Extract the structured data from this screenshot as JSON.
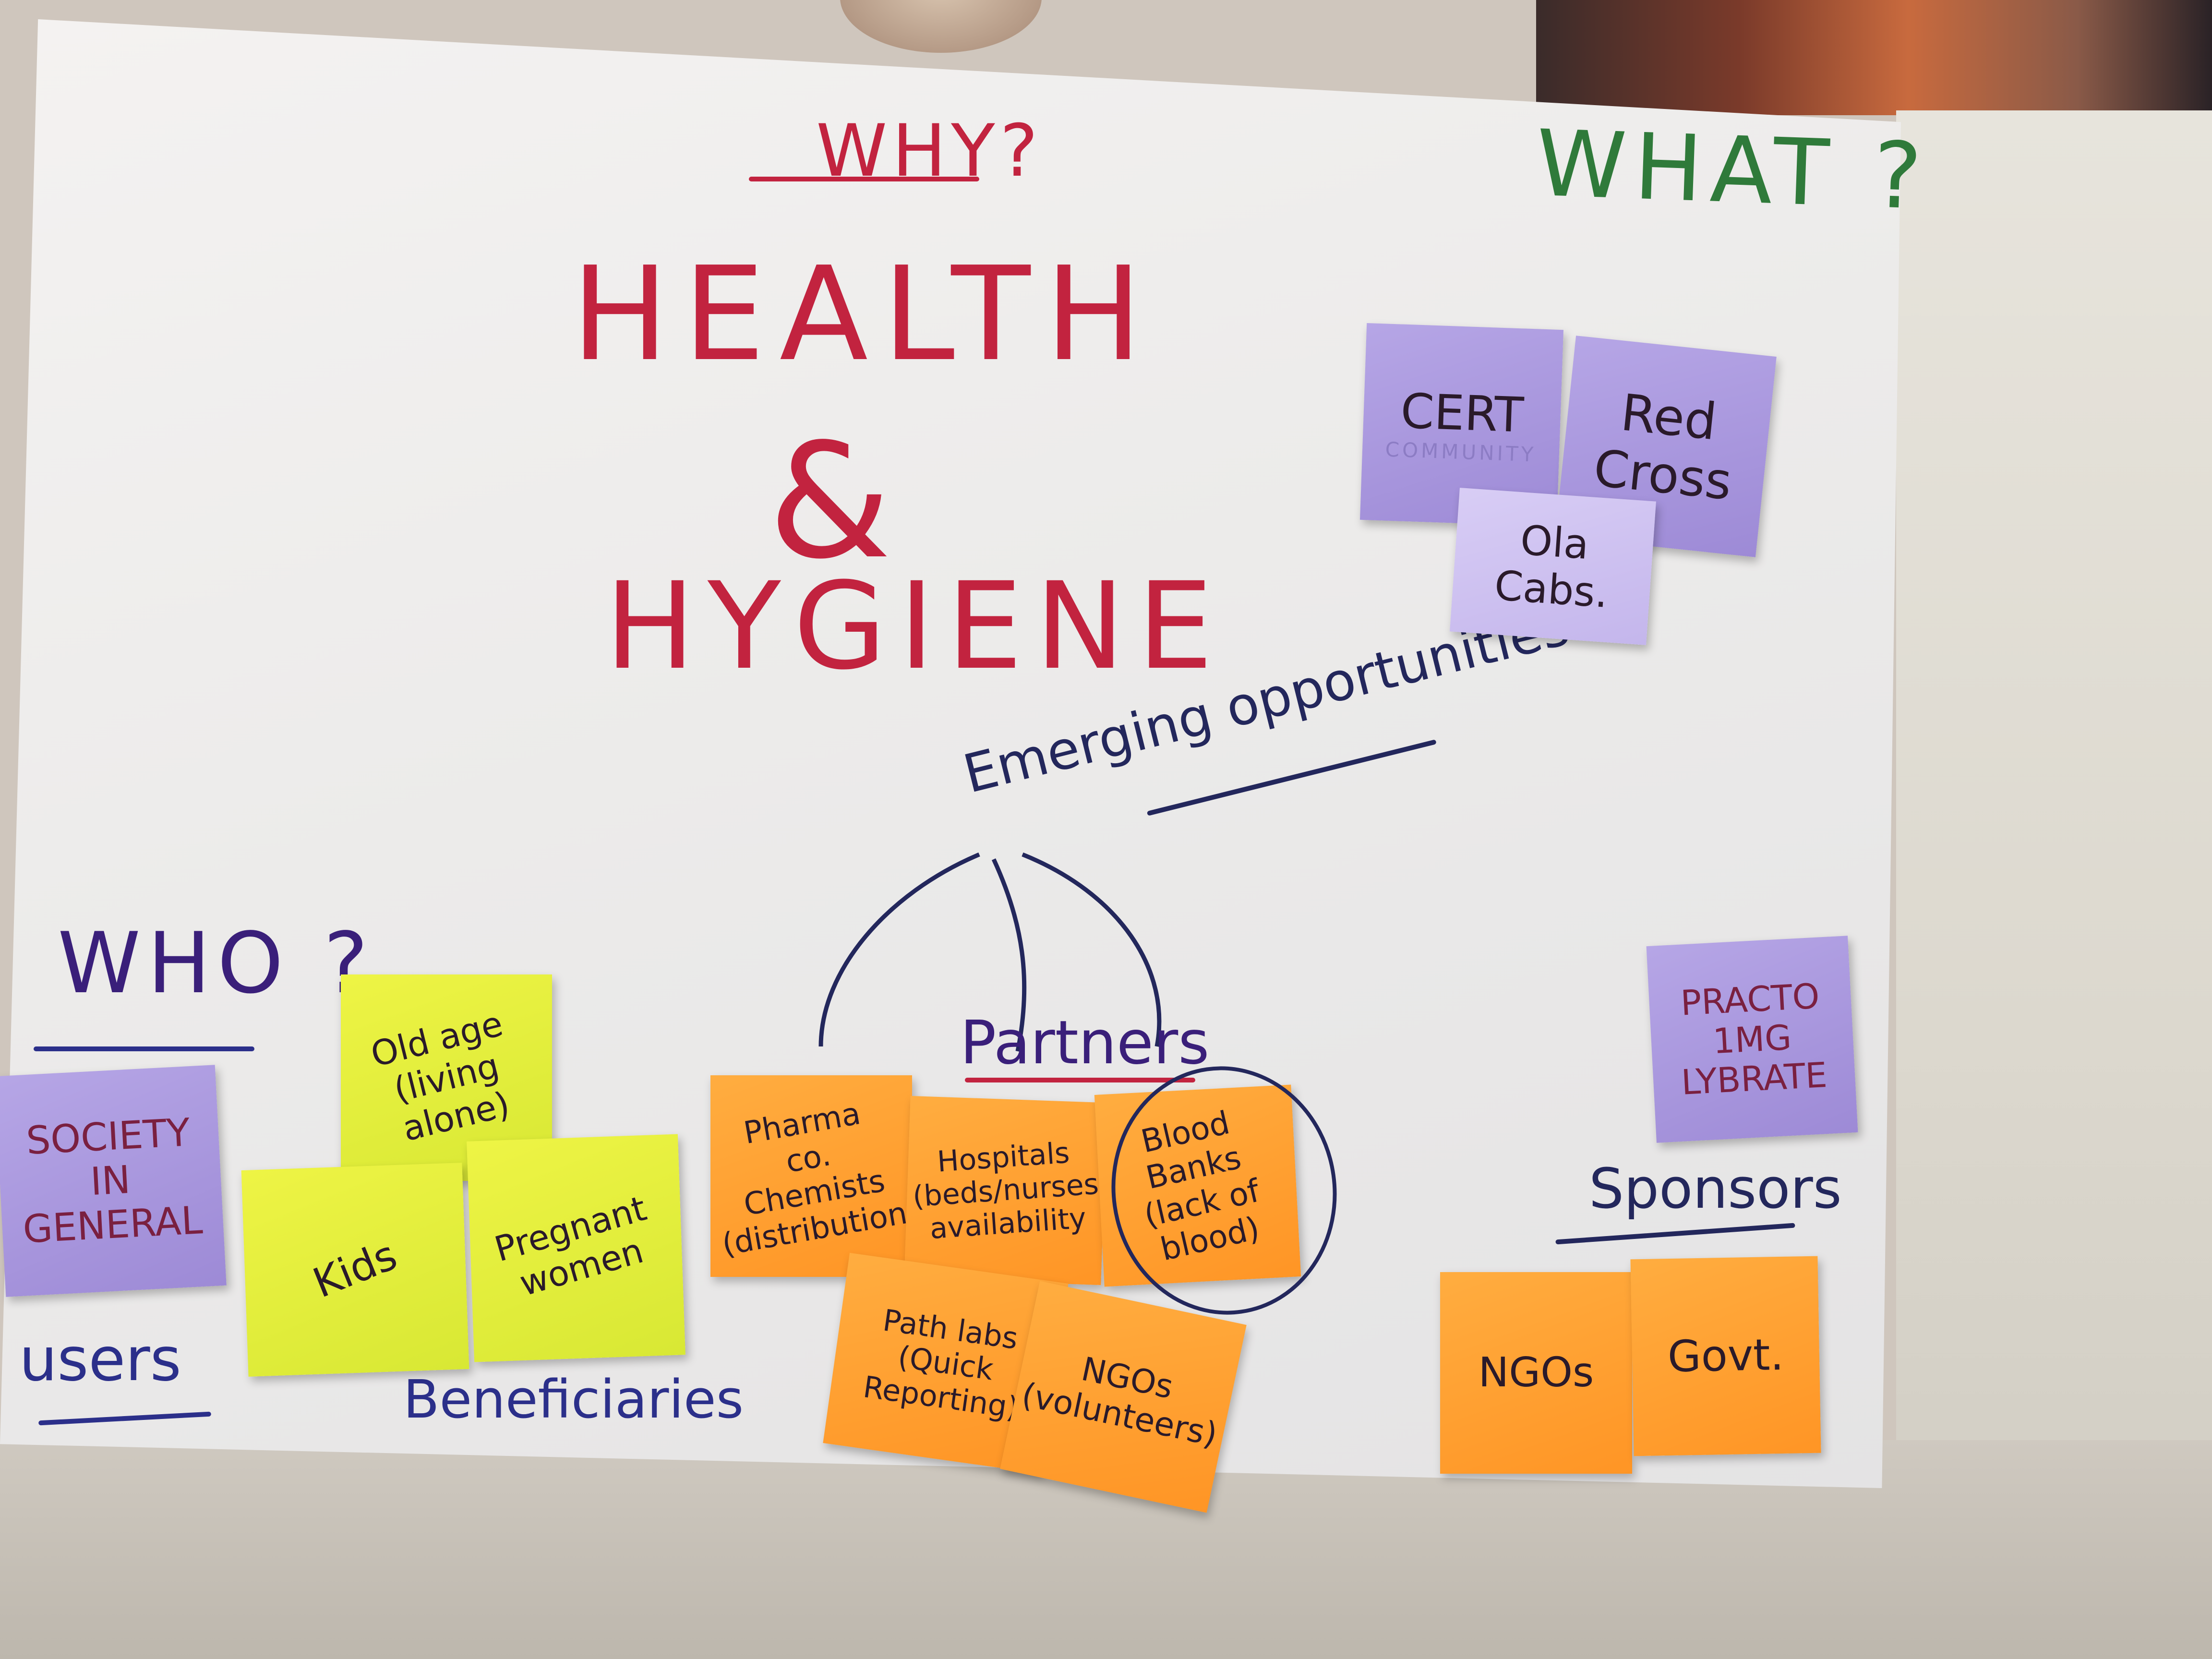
{
  "headings": {
    "why": "WHY?",
    "what": "WHAT ?",
    "who": "WHO ?",
    "title_line1": "HEALTH",
    "ampersand": "&",
    "title_line2": "HYGIENE",
    "emerging": "Emerging opportunities",
    "partners": "Partners",
    "sponsors": "Sponsors",
    "users": "users",
    "beneficiaries": "Beneficiaries"
  },
  "what_notes": [
    {
      "text": "CERT",
      "sub": "COMMUNITY"
    },
    {
      "text": "Red\nCross"
    },
    {
      "text": "Ola\nCabs."
    }
  ],
  "who_notes": [
    {
      "text": "SOCIETY\nIN\nGENERAL"
    },
    {
      "text": "Old age\n(living alone)"
    },
    {
      "text": "Kids"
    },
    {
      "text": "Pregnant\nwomen"
    }
  ],
  "partner_notes": [
    {
      "text": "Pharma\nco.\nChemists\n(distribution)"
    },
    {
      "text": "Hospitals\n(beds/nurses\navailability"
    },
    {
      "text": "Blood\nBanks\n(lack of blood)"
    },
    {
      "text": "Path labs\n(Quick\nReporting)"
    },
    {
      "text": "NGOs\n(volunteers)"
    }
  ],
  "sponsor_notes": [
    {
      "text": "PRACTO\n1MG\nLYBRATE"
    },
    {
      "text": "NGOs"
    },
    {
      "text": "Govt."
    }
  ],
  "colors": {
    "red_marker": "#c2233f",
    "green_marker": "#2f7a3a",
    "blue_marker": "#2b2f8a",
    "purple_note": "#a896dd",
    "yellow_note": "#e3ee3c",
    "orange_note": "#ff9f33"
  }
}
